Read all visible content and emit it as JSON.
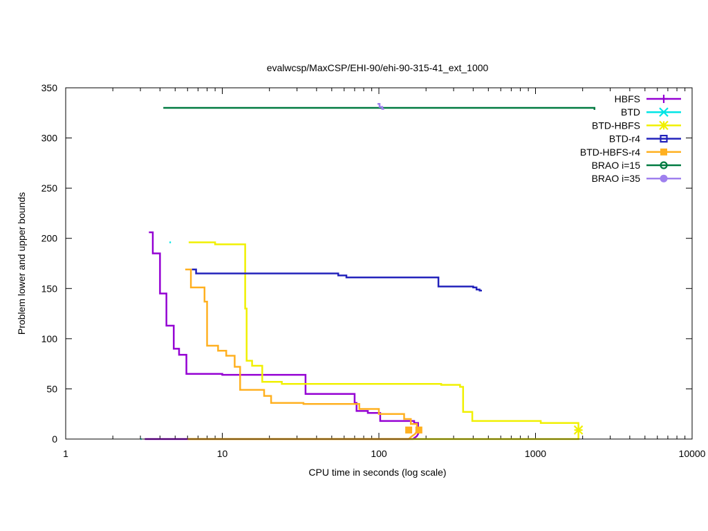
{
  "chart_data": {
    "type": "line",
    "title": "evalwcsp/MaxCSP/EHI-90/ehi-90-315-41_ext_1000",
    "xlabel": "CPU time in seconds (log scale)",
    "ylabel": "Problem lower and upper bounds",
    "xscale": "log",
    "xlim": [
      1,
      10000
    ],
    "ylim": [
      0,
      350
    ],
    "xticks": [
      1,
      10,
      100,
      1000,
      10000
    ],
    "xtick_labels": [
      "1",
      "10",
      "100",
      "1000",
      "10000"
    ],
    "yticks": [
      0,
      50,
      100,
      150,
      200,
      250,
      300,
      350
    ],
    "ytick_labels": [
      "0",
      "50",
      "100",
      "150",
      "200",
      "250",
      "300",
      "350"
    ],
    "legend_position": "top-right",
    "series": [
      {
        "name": "HBFS",
        "color": "#9400d3",
        "marker": "plus",
        "upper": [
          [
            3.4,
            206
          ],
          [
            3.6,
            206
          ],
          [
            3.6,
            185
          ],
          [
            4.0,
            185
          ],
          [
            4.0,
            145
          ],
          [
            4.4,
            145
          ],
          [
            4.4,
            113
          ],
          [
            4.9,
            113
          ],
          [
            4.9,
            90
          ],
          [
            5.3,
            90
          ],
          [
            5.3,
            84
          ],
          [
            5.9,
            84
          ],
          [
            5.9,
            65
          ],
          [
            10.0,
            65
          ],
          [
            10.0,
            64
          ],
          [
            34,
            64
          ],
          [
            34,
            45
          ],
          [
            70,
            45
          ],
          [
            70,
            36
          ],
          [
            72,
            36
          ],
          [
            72,
            28
          ],
          [
            85,
            28
          ],
          [
            85,
            26
          ],
          [
            102,
            26
          ],
          [
            102,
            18
          ],
          [
            168,
            18
          ],
          [
            168,
            16
          ],
          [
            178,
            16
          ],
          [
            178,
            9
          ],
          [
            185,
            9
          ]
        ],
        "lower": [
          [
            3.2,
            0
          ],
          [
            165,
            0
          ],
          [
            168,
            1
          ],
          [
            172,
            2
          ],
          [
            175,
            3
          ],
          [
            178,
            5
          ],
          [
            180,
            7
          ],
          [
            182,
            9
          ]
        ],
        "markers": []
      },
      {
        "name": "BTD",
        "color": "#00e5e5",
        "marker": "x",
        "upper": [
          [
            4.6,
            196
          ],
          [
            4.7,
            196
          ]
        ],
        "lower": [
          [
            3.0,
            0
          ],
          [
            3.05,
            0
          ]
        ],
        "markers": []
      },
      {
        "name": "BTD-HBFS",
        "color": "#f0f000",
        "marker": "star",
        "upper": [
          [
            6.1,
            196
          ],
          [
            9.0,
            196
          ],
          [
            9.0,
            194
          ],
          [
            14.0,
            194
          ],
          [
            14.0,
            130
          ],
          [
            14.3,
            130
          ],
          [
            14.3,
            78
          ],
          [
            15.5,
            78
          ],
          [
            15.5,
            73
          ],
          [
            18,
            73
          ],
          [
            18,
            57
          ],
          [
            24,
            57
          ],
          [
            24,
            55
          ],
          [
            250,
            55
          ],
          [
            250,
            54
          ],
          [
            330,
            54
          ],
          [
            330,
            52
          ],
          [
            345,
            52
          ],
          [
            345,
            27
          ],
          [
            395,
            27
          ],
          [
            395,
            18
          ],
          [
            1080,
            18
          ],
          [
            1080,
            16
          ],
          [
            1880,
            16
          ],
          [
            1880,
            9
          ]
        ],
        "lower": [
          [
            6.1,
            0
          ],
          [
            1880,
            0
          ],
          [
            1880,
            9
          ]
        ],
        "markers": [
          [
            1880,
            9
          ]
        ]
      },
      {
        "name": "BTD-r4",
        "color": "#2222bb",
        "marker": "square",
        "upper": [
          [
            6.4,
            169
          ],
          [
            6.8,
            169
          ],
          [
            6.8,
            165
          ],
          [
            55,
            165
          ],
          [
            55,
            163
          ],
          [
            62,
            163
          ],
          [
            62,
            161
          ],
          [
            240,
            161
          ],
          [
            240,
            152
          ],
          [
            400,
            152
          ],
          [
            400,
            151
          ],
          [
            420,
            151
          ],
          [
            420,
            149
          ],
          [
            440,
            149
          ],
          [
            440,
            148
          ],
          [
            455,
            148
          ]
        ],
        "lower": [],
        "markers": []
      },
      {
        "name": "BTD-HBFS-r4",
        "color": "#ffb020",
        "marker": "filled-square",
        "upper": [
          [
            5.8,
            169
          ],
          [
            6.3,
            169
          ],
          [
            6.3,
            151
          ],
          [
            7.7,
            151
          ],
          [
            7.7,
            137
          ],
          [
            8.0,
            137
          ],
          [
            8.0,
            93
          ],
          [
            9.4,
            93
          ],
          [
            9.4,
            88
          ],
          [
            10.6,
            88
          ],
          [
            10.6,
            83
          ],
          [
            12.0,
            83
          ],
          [
            12.0,
            72
          ],
          [
            13.0,
            72
          ],
          [
            13.0,
            49
          ],
          [
            18.5,
            49
          ],
          [
            18.5,
            43
          ],
          [
            20.5,
            43
          ],
          [
            20.5,
            36
          ],
          [
            33,
            36
          ],
          [
            33,
            35
          ],
          [
            75,
            35
          ],
          [
            75,
            30
          ],
          [
            100,
            30
          ],
          [
            100,
            25
          ],
          [
            145,
            25
          ],
          [
            145,
            20
          ],
          [
            160,
            20
          ],
          [
            160,
            15
          ],
          [
            175,
            15
          ],
          [
            175,
            11
          ],
          [
            180,
            11
          ],
          [
            180,
            9
          ]
        ],
        "lower": [
          [
            6.0,
            0
          ],
          [
            155,
            0
          ],
          [
            160,
            2
          ],
          [
            170,
            5
          ],
          [
            178,
            9
          ]
        ],
        "markers": [
          [
            155,
            9
          ],
          [
            180,
            9
          ]
        ]
      },
      {
        "name": "BRAO i=15",
        "color": "#007a40",
        "marker": "circle",
        "upper": [
          [
            4.2,
            330
          ],
          [
            2380,
            330
          ],
          [
            2380,
            328
          ]
        ],
        "lower": [],
        "markers": []
      },
      {
        "name": "BRAO i=35",
        "color": "#9f80ee",
        "marker": "filled-circle",
        "upper": [
          [
            98,
            334
          ],
          [
            101,
            334
          ],
          [
            101,
            331
          ],
          [
            105,
            331
          ],
          [
            105,
            329
          ],
          [
            108,
            329
          ]
        ],
        "lower": [],
        "markers": []
      }
    ]
  }
}
